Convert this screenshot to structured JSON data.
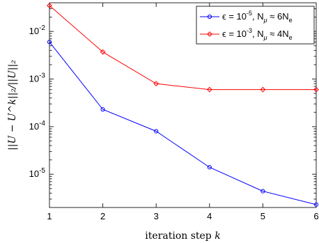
{
  "chart_data": {
    "type": "line",
    "title": "",
    "xlabel": "iteration step k",
    "ylabel": "||U − U^k||₂/||U||₂",
    "x": [
      1,
      2,
      3,
      4,
      5,
      6
    ],
    "xlim": [
      1,
      6
    ],
    "ylim": [
      2e-06,
      0.04
    ],
    "yscale": "log",
    "x_ticks": [
      "1",
      "2",
      "3",
      "4",
      "5",
      "6"
    ],
    "y_ticks": [
      {
        "value": 0.01,
        "mantissa": "10",
        "exp": "-2"
      },
      {
        "value": 0.001,
        "mantissa": "10",
        "exp": "-3"
      },
      {
        "value": 0.0001,
        "mantissa": "10",
        "exp": "-4"
      },
      {
        "value": 1e-05,
        "mantissa": "10",
        "exp": "-5"
      }
    ],
    "grid": false,
    "legend_position": "top-right",
    "series": [
      {
        "name": "ϵ = 10^-5, N_μ ≈ 6N_e",
        "legend_parts": {
          "eps": "ϵ = 10",
          "eps_exp": "-5",
          "mid": ", N",
          "mu_sub": "μ",
          "approx": " ≈ 6N",
          "e_sub": "e"
        },
        "color": "#0000ff",
        "marker": "circle",
        "values": [
          0.006,
          0.00023,
          8e-05,
          1.4e-05,
          4.4e-06,
          2.3e-06
        ]
      },
      {
        "name": "ϵ = 10^-3, N_μ ≈ 4N_e",
        "legend_parts": {
          "eps": "ϵ = 10",
          "eps_exp": "-3",
          "mid": ", N",
          "mu_sub": "μ",
          "approx": " ≈ 4N",
          "e_sub": "e"
        },
        "color": "#ff0000",
        "marker": "diamond",
        "values": [
          0.035,
          0.0037,
          0.0008,
          0.0006,
          0.0006,
          0.0006
        ]
      }
    ]
  }
}
